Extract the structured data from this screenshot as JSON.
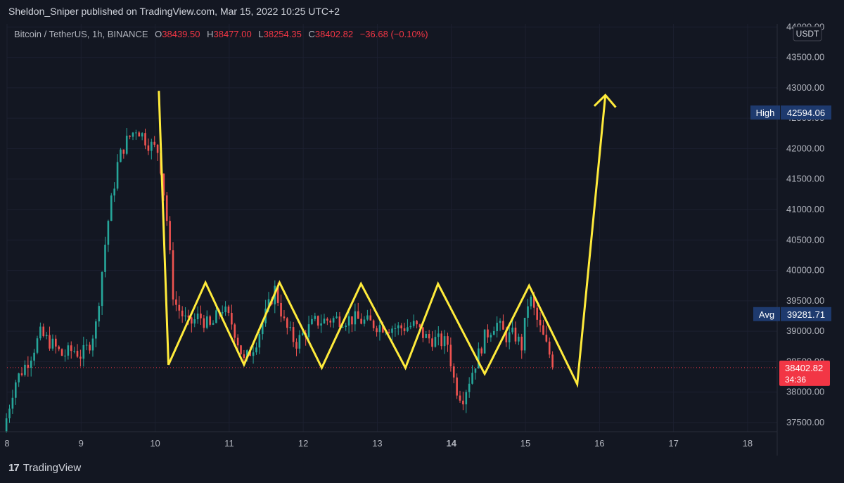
{
  "header": {
    "publisher_line": "Sheldon_Sniper published on TradingView.com, Mar 15, 2022 10:25 UTC+2"
  },
  "symbol_info": {
    "name": "Bitcoin / TetherUS, 1h, BINANCE",
    "open_label": "O",
    "open": "38439.50",
    "high_label": "H",
    "high": "38477.00",
    "low_label": "L",
    "low": "38254.35",
    "close_label": "C",
    "close": "38402.82",
    "change": "−36.68 (−0.10%)"
  },
  "colors": {
    "background": "#131722",
    "up_candle": "#26a69a",
    "down_candle": "#ef5350",
    "drawing": "#ffeb3b",
    "axis_text": "#b2b5be",
    "label_bg": "#1e3a6e",
    "price_label_bg": "#f23645"
  },
  "chart_data": {
    "type": "candlestick",
    "currency_unit": "USDT",
    "y_range": [
      37350,
      44050
    ],
    "x_range_days": [
      8,
      18.4
    ],
    "y_ticks": [
      "37500.00",
      "38000.00",
      "38500.00",
      "39000.00",
      "39500.00",
      "40000.00",
      "40500.00",
      "41000.00",
      "41500.00",
      "42000.00",
      "42500.00",
      "43000.00",
      "43500.00",
      "44000.00"
    ],
    "x_ticks": [
      {
        "label": "8",
        "day": 8
      },
      {
        "label": "9",
        "day": 9
      },
      {
        "label": "10",
        "day": 10
      },
      {
        "label": "11",
        "day": 11
      },
      {
        "label": "12",
        "day": 12
      },
      {
        "label": "13",
        "day": 13
      },
      {
        "label": "14",
        "day": 14
      },
      {
        "label": "15",
        "day": 15
      },
      {
        "label": "16",
        "day": 16
      },
      {
        "label": "17",
        "day": 17
      },
      {
        "label": "18",
        "day": 18
      }
    ],
    "bold_tick_day": 14,
    "anchor_points": [
      {
        "day": 7.95,
        "price": 37350
      },
      {
        "day": 8.1,
        "price": 38150
      },
      {
        "day": 8.3,
        "price": 38550
      },
      {
        "day": 8.45,
        "price": 38950
      },
      {
        "day": 8.6,
        "price": 38800
      },
      {
        "day": 8.75,
        "price": 38600
      },
      {
        "day": 8.9,
        "price": 38700
      },
      {
        "day": 9.0,
        "price": 38600
      },
      {
        "day": 9.1,
        "price": 38750
      },
      {
        "day": 9.2,
        "price": 39100
      },
      {
        "day": 9.35,
        "price": 40700
      },
      {
        "day": 9.5,
        "price": 41800
      },
      {
        "day": 9.6,
        "price": 42100
      },
      {
        "day": 9.75,
        "price": 42350
      },
      {
        "day": 9.9,
        "price": 42100
      },
      {
        "day": 10.05,
        "price": 41950
      },
      {
        "day": 10.15,
        "price": 40950
      },
      {
        "day": 10.25,
        "price": 39500
      },
      {
        "day": 10.45,
        "price": 39100
      },
      {
        "day": 10.6,
        "price": 39250
      },
      {
        "day": 10.75,
        "price": 39050
      },
      {
        "day": 10.9,
        "price": 39400
      },
      {
        "day": 11.05,
        "price": 39100
      },
      {
        "day": 11.2,
        "price": 38500
      },
      {
        "day": 11.35,
        "price": 38800
      },
      {
        "day": 11.5,
        "price": 39300
      },
      {
        "day": 11.62,
        "price": 39700
      },
      {
        "day": 11.75,
        "price": 39100
      },
      {
        "day": 11.9,
        "price": 38800
      },
      {
        "day": 12.0,
        "price": 38950
      },
      {
        "day": 12.15,
        "price": 39150
      },
      {
        "day": 12.4,
        "price": 39200
      },
      {
        "day": 12.7,
        "price": 39200
      },
      {
        "day": 13.0,
        "price": 39100
      },
      {
        "day": 13.3,
        "price": 39050
      },
      {
        "day": 13.5,
        "price": 39100
      },
      {
        "day": 13.65,
        "price": 38900
      },
      {
        "day": 13.8,
        "price": 38850
      },
      {
        "day": 13.95,
        "price": 38800
      },
      {
        "day": 14.05,
        "price": 38100
      },
      {
        "day": 14.15,
        "price": 37900
      },
      {
        "day": 14.3,
        "price": 38400
      },
      {
        "day": 14.45,
        "price": 38900
      },
      {
        "day": 14.6,
        "price": 39150
      },
      {
        "day": 14.75,
        "price": 38900
      },
      {
        "day": 14.85,
        "price": 38950
      },
      {
        "day": 14.95,
        "price": 38750
      },
      {
        "day": 15.05,
        "price": 39600
      },
      {
        "day": 15.15,
        "price": 39200
      },
      {
        "day": 15.3,
        "price": 38700
      },
      {
        "day": 15.4,
        "price": 38400
      }
    ],
    "drawing_lines": [
      {
        "name": "zigzag",
        "points": [
          {
            "day": 10.05,
            "price": 42950
          },
          {
            "day": 10.18,
            "price": 38450
          },
          {
            "day": 10.68,
            "price": 39800
          },
          {
            "day": 11.2,
            "price": 38450
          },
          {
            "day": 11.68,
            "price": 39800
          },
          {
            "day": 12.25,
            "price": 38400
          },
          {
            "day": 12.78,
            "price": 39780
          },
          {
            "day": 13.38,
            "price": 38400
          },
          {
            "day": 13.82,
            "price": 39780
          },
          {
            "day": 14.45,
            "price": 38300
          },
          {
            "day": 15.05,
            "price": 39750
          },
          {
            "day": 15.7,
            "price": 38130
          },
          {
            "day": 16.08,
            "price": 42880
          }
        ]
      },
      {
        "name": "arrowhead",
        "points": [
          {
            "day": 15.93,
            "price": 42700
          },
          {
            "day": 16.08,
            "price": 42880
          },
          {
            "day": 16.22,
            "price": 42680
          }
        ]
      }
    ],
    "current_price_line": 38402.82,
    "labels": {
      "currency_button": "USDT",
      "high_label": "High",
      "high_value": "42594.06",
      "high_price": 42594.06,
      "avg_label": "Avg",
      "avg_value": "39281.71",
      "avg_price": 39281.71,
      "current_value": "38402.82",
      "countdown": "34:36"
    }
  },
  "footer": {
    "logo_mark": "17",
    "logo_text": "TradingView"
  }
}
